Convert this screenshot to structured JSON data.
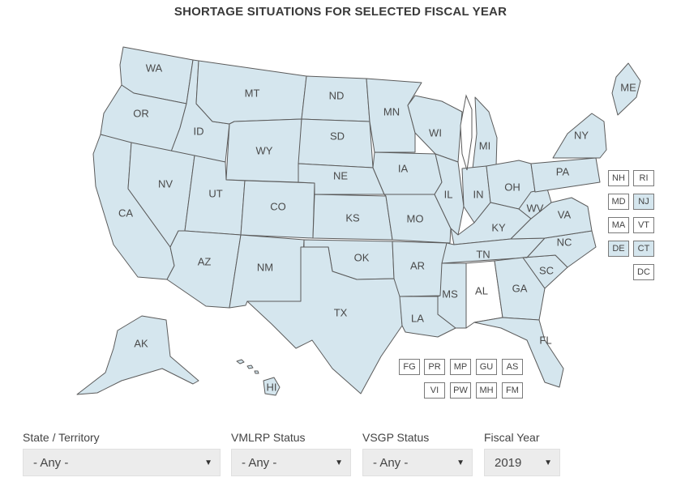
{
  "title": "SHORTAGE SITUATIONS FOR SELECTED FISCAL YEAR",
  "colors": {
    "shortage": "#d5e6ee",
    "none": "#ffffff",
    "border": "#5b5b5b"
  },
  "states": [
    {
      "code": "WA",
      "shortage": true
    },
    {
      "code": "OR",
      "shortage": true
    },
    {
      "code": "CA",
      "shortage": true
    },
    {
      "code": "ID",
      "shortage": true
    },
    {
      "code": "NV",
      "shortage": true
    },
    {
      "code": "MT",
      "shortage": true
    },
    {
      "code": "WY",
      "shortage": true
    },
    {
      "code": "UT",
      "shortage": true
    },
    {
      "code": "AZ",
      "shortage": true
    },
    {
      "code": "CO",
      "shortage": true
    },
    {
      "code": "NM",
      "shortage": true
    },
    {
      "code": "ND",
      "shortage": true
    },
    {
      "code": "SD",
      "shortage": true
    },
    {
      "code": "NE",
      "shortage": true
    },
    {
      "code": "KS",
      "shortage": true
    },
    {
      "code": "OK",
      "shortage": true
    },
    {
      "code": "TX",
      "shortage": true
    },
    {
      "code": "MN",
      "shortage": true
    },
    {
      "code": "IA",
      "shortage": true
    },
    {
      "code": "MO",
      "shortage": true
    },
    {
      "code": "AR",
      "shortage": true
    },
    {
      "code": "LA",
      "shortage": true
    },
    {
      "code": "WI",
      "shortage": true
    },
    {
      "code": "IL",
      "shortage": true
    },
    {
      "code": "MI",
      "shortage": true
    },
    {
      "code": "IN",
      "shortage": true
    },
    {
      "code": "OH",
      "shortage": true
    },
    {
      "code": "KY",
      "shortage": true
    },
    {
      "code": "TN",
      "shortage": true
    },
    {
      "code": "MS",
      "shortage": true
    },
    {
      "code": "AL",
      "shortage": false
    },
    {
      "code": "GA",
      "shortage": true
    },
    {
      "code": "FL",
      "shortage": true
    },
    {
      "code": "SC",
      "shortage": true
    },
    {
      "code": "NC",
      "shortage": true
    },
    {
      "code": "VA",
      "shortage": true
    },
    {
      "code": "WV",
      "shortage": true
    },
    {
      "code": "PA",
      "shortage": true
    },
    {
      "code": "NY",
      "shortage": true
    },
    {
      "code": "ME",
      "shortage": true
    },
    {
      "code": "AK",
      "shortage": true
    },
    {
      "code": "HI",
      "shortage": true
    }
  ],
  "small_states": [
    {
      "code": "NH",
      "shortage": false
    },
    {
      "code": "RI",
      "shortage": false
    },
    {
      "code": "MD",
      "shortage": false
    },
    {
      "code": "NJ",
      "shortage": true
    },
    {
      "code": "MA",
      "shortage": false
    },
    {
      "code": "VT",
      "shortage": false
    },
    {
      "code": "DE",
      "shortage": true
    },
    {
      "code": "CT",
      "shortage": true
    },
    {
      "code": "DC",
      "shortage": false
    }
  ],
  "territories": [
    {
      "code": "FG",
      "shortage": false
    },
    {
      "code": "PR",
      "shortage": false
    },
    {
      "code": "MP",
      "shortage": false
    },
    {
      "code": "GU",
      "shortage": false
    },
    {
      "code": "AS",
      "shortage": false
    },
    {
      "code": "VI",
      "shortage": false
    },
    {
      "code": "PW",
      "shortage": false
    },
    {
      "code": "MH",
      "shortage": false
    },
    {
      "code": "FM",
      "shortage": false
    }
  ],
  "filters": {
    "state": {
      "label": "State / Territory",
      "value": "- Any -"
    },
    "vmlrp": {
      "label": "VMLRP Status",
      "value": "- Any -"
    },
    "vsgp": {
      "label": "VSGP Status",
      "value": "- Any -"
    },
    "year": {
      "label": "Fiscal Year",
      "value": "2019"
    }
  },
  "dropdown_icon": "caret-down-icon"
}
